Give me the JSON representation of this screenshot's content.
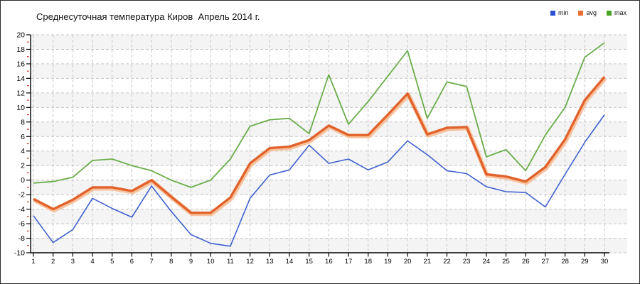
{
  "title": "Среднесуточная температура Киров  Апрель 2014 г.",
  "legend": {
    "position": "top-right",
    "items": [
      {
        "label": "min",
        "color": "#2b50d0"
      },
      {
        "label": "avg",
        "color": "#e8702e"
      },
      {
        "label": "max",
        "color": "#49a426"
      }
    ]
  },
  "chart_data": {
    "type": "line",
    "title": "Среднесуточная температура Киров  Апрель 2014 г.",
    "xlabel": "",
    "ylabel": "",
    "x": [
      1,
      2,
      3,
      4,
      5,
      6,
      7,
      8,
      9,
      10,
      11,
      12,
      13,
      14,
      15,
      16,
      17,
      18,
      19,
      20,
      21,
      22,
      23,
      24,
      25,
      26,
      27,
      28,
      29,
      30
    ],
    "ylim": [
      -10,
      20
    ],
    "ytick_step": 2,
    "grid": "dashed",
    "plot_bands": {
      "band1": "#f4f4f4",
      "band2": "#ffffff"
    },
    "gridline_color": "#c6c6c6",
    "axis_color": "#000000",
    "minor_tick_color": "#cc1111",
    "series": [
      {
        "name": "min",
        "color": "#4060d0",
        "width": 1.6,
        "values": [
          -4.9,
          -8.6,
          -6.8,
          -2.5,
          -3.9,
          -5.1,
          -0.8,
          -4.3,
          -7.5,
          -8.7,
          -9.1,
          -2.5,
          0.7,
          1.4,
          4.8,
          2.3,
          2.9,
          1.4,
          2.5,
          5.4,
          3.5,
          1.3,
          0.9,
          -0.9,
          -1.6,
          -1.7,
          -3.7,
          0.8,
          5.2,
          9.0
        ]
      },
      {
        "name": "avg",
        "color": "#e2622b",
        "halo": "#f7bd94",
        "width": 3.4,
        "values": [
          -2.6,
          -4.0,
          -2.7,
          -1.0,
          -1.0,
          -1.5,
          0.0,
          -2.3,
          -4.5,
          -4.5,
          -2.4,
          2.3,
          4.4,
          4.6,
          5.5,
          7.5,
          6.2,
          6.2,
          9.0,
          11.9,
          6.3,
          7.2,
          7.3,
          0.8,
          0.5,
          -0.2,
          1.8,
          5.6,
          11.0,
          14.2
        ]
      },
      {
        "name": "max",
        "color": "#6bad49",
        "width": 1.8,
        "values": [
          -0.4,
          -0.2,
          0.4,
          2.7,
          2.9,
          2.0,
          1.3,
          0.0,
          -1.0,
          0.0,
          2.9,
          7.4,
          8.3,
          8.5,
          6.4,
          14.5,
          7.7,
          10.8,
          14.3,
          17.8,
          8.5,
          13.5,
          12.9,
          3.2,
          4.2,
          1.3,
          6.2,
          10.0,
          16.9,
          18.9
        ]
      }
    ]
  }
}
